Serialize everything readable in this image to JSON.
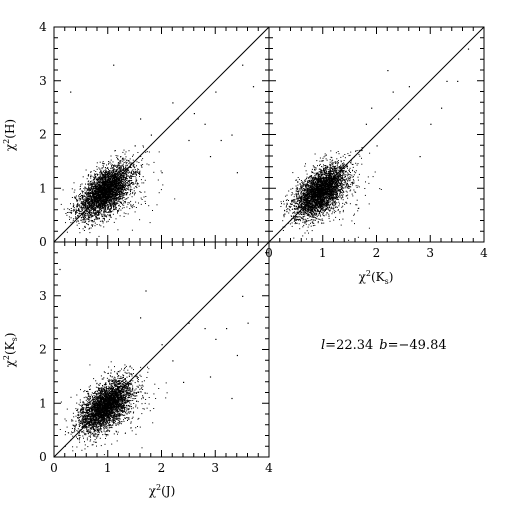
{
  "chart_data": [
    {
      "id": "H_vs_J",
      "type": "scatter",
      "xlabel": "",
      "ylabel_base": "χ",
      "ylabel_sup": "2",
      "ylabel_rest": "(H)",
      "xlim": [
        0,
        4
      ],
      "ylim": [
        0,
        4
      ],
      "x_tick_labels": [],
      "y_tick_labels": [
        "0",
        "1",
        "2",
        "3",
        "4"
      ],
      "reference_line": "y = x",
      "cluster": {
        "center": [
          0.95,
          0.95
        ],
        "count": 3800
      },
      "sparse_points": [
        [
          1.5,
          1.8
        ],
        [
          2.2,
          2.6
        ],
        [
          2.6,
          2.4
        ],
        [
          2.8,
          2.2
        ],
        [
          3.1,
          1.9
        ],
        [
          3.3,
          2.0
        ],
        [
          2.9,
          1.6
        ],
        [
          3.5,
          3.3
        ],
        [
          1.1,
          3.3
        ],
        [
          0.3,
          2.8
        ],
        [
          1.8,
          2.0
        ],
        [
          2.5,
          1.9
        ],
        [
          3.7,
          2.9
        ],
        [
          2.0,
          1.3
        ],
        [
          1.6,
          2.3
        ],
        [
          3.4,
          1.3
        ],
        [
          2.3,
          2.3
        ],
        [
          3.0,
          2.8
        ]
      ]
    },
    {
      "id": "H_vs_Ks",
      "type": "scatter",
      "xlabel_base": "χ",
      "xlabel_sup": "2",
      "xlabel_rest": "(K",
      "xlabel_sub": "s",
      "xlabel_end": ")",
      "ylabel": "",
      "xlim": [
        0,
        4
      ],
      "ylim": [
        0,
        4
      ],
      "x_tick_labels": [
        "0",
        "1",
        "2",
        "3",
        "4"
      ],
      "y_tick_labels": [],
      "reference_line": "y = x",
      "cluster": {
        "center": [
          0.95,
          0.95
        ],
        "count": 3800
      },
      "sparse_points": [
        [
          1.8,
          2.2
        ],
        [
          2.0,
          1.8
        ],
        [
          2.3,
          2.8
        ],
        [
          2.6,
          2.9
        ],
        [
          3.2,
          2.5
        ],
        [
          3.3,
          3.0
        ],
        [
          2.2,
          3.2
        ],
        [
          1.6,
          1.7
        ],
        [
          2.8,
          1.6
        ],
        [
          3.5,
          3.0
        ],
        [
          2.4,
          2.3
        ],
        [
          1.9,
          2.5
        ],
        [
          3.0,
          2.2
        ],
        [
          3.7,
          3.6
        ]
      ]
    },
    {
      "id": "Ks_vs_J",
      "type": "scatter",
      "xlabel_base": "χ",
      "xlabel_sup": "2",
      "xlabel_rest": "(J)",
      "ylabel_base": "χ",
      "ylabel_sup": "2",
      "ylabel_rest": "(K",
      "ylabel_sub": "s",
      "ylabel_end": ")",
      "xlim": [
        0,
        4
      ],
      "ylim": [
        0,
        4
      ],
      "x_tick_labels": [
        "0",
        "1",
        "2",
        "3",
        "4"
      ],
      "y_tick_labels": [
        "0",
        "1",
        "2",
        "3"
      ],
      "reference_line": "y = x",
      "cluster": {
        "center": [
          0.95,
          0.95
        ],
        "count": 3800
      },
      "sparse_points": [
        [
          1.6,
          2.6
        ],
        [
          1.7,
          3.1
        ],
        [
          2.5,
          2.5
        ],
        [
          2.8,
          2.4
        ],
        [
          3.0,
          2.2
        ],
        [
          3.2,
          2.4
        ],
        [
          3.4,
          1.9
        ],
        [
          3.6,
          2.5
        ],
        [
          2.2,
          1.8
        ],
        [
          2.9,
          1.5
        ],
        [
          3.3,
          1.1
        ],
        [
          0.1,
          3.5
        ],
        [
          2.4,
          1.4
        ],
        [
          3.5,
          3.0
        ],
        [
          2.0,
          2.1
        ]
      ]
    }
  ],
  "annotation": {
    "l_symbol": "l",
    "l_value": "=22.34",
    "b_symbol": "b",
    "b_value": "=−49.84"
  }
}
